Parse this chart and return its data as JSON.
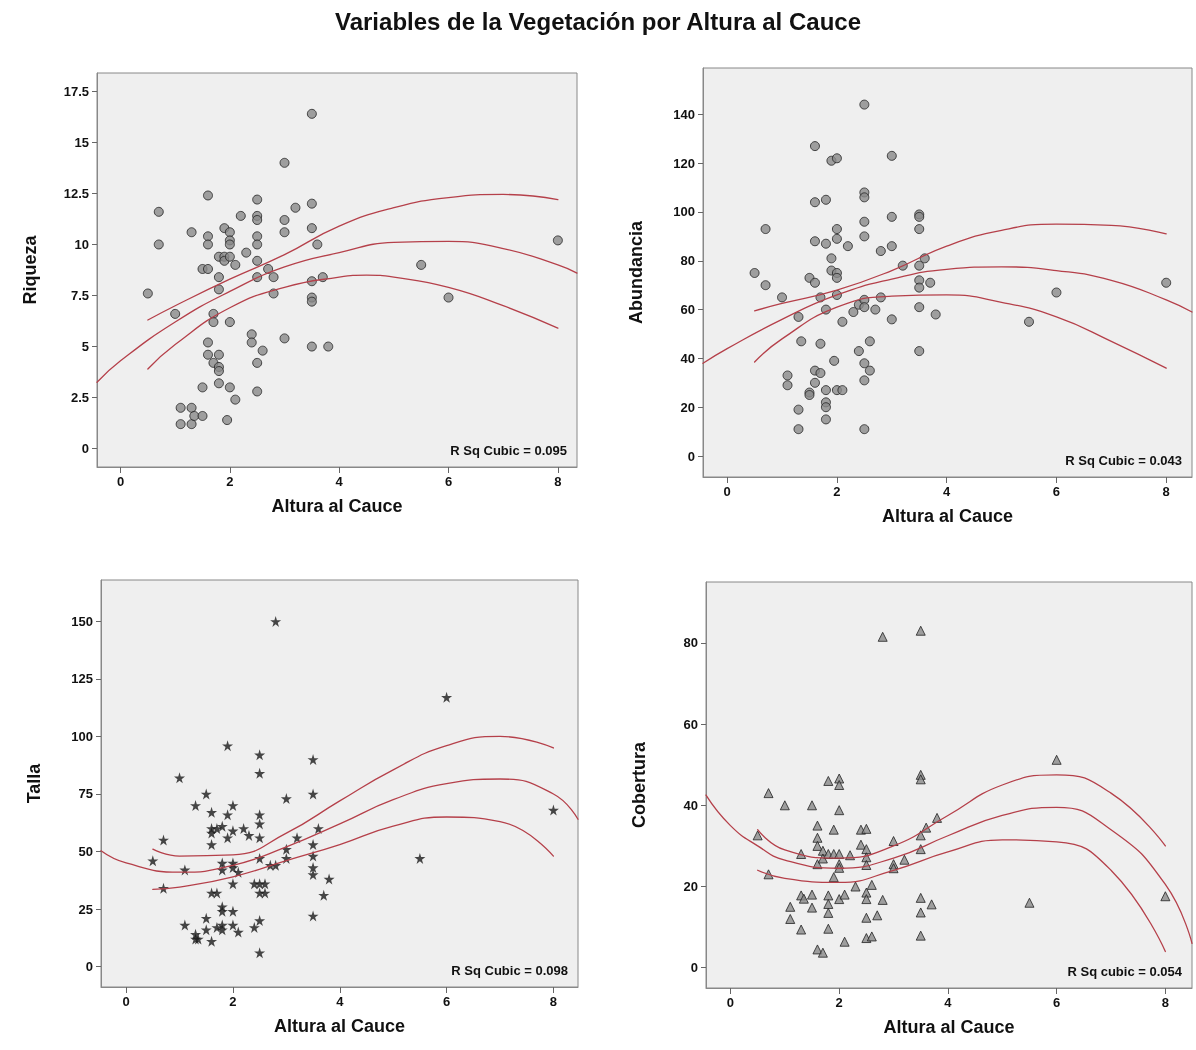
{
  "chart_data": [
    {
      "type": "scatter",
      "title": "Variables de la Vegetación por Altura al Cauce",
      "xlabel": "Altura al Cauce",
      "ylabel": "Riqueza",
      "annotations": [
        "R Sq Cubic = 0.095"
      ],
      "xlim": [
        -0.43,
        8.35
      ],
      "ylim": [
        -0.9,
        18.4
      ],
      "xticks": [
        0,
        2,
        4,
        6,
        8
      ],
      "yticks": [
        0,
        2.5,
        5,
        7.5,
        10,
        12.5,
        15,
        17.5
      ],
      "grid": false,
      "series": [
        {
          "marker": "circle",
          "color": "#8a8a8a",
          "x": [
            0.5,
            0.7,
            0.7,
            1.0,
            1.3,
            1.1,
            1.1,
            1.3,
            1.3,
            1.35,
            1.5,
            1.5,
            1.5,
            1.6,
            1.6,
            1.6,
            1.6,
            1.6,
            1.6,
            1.7,
            1.7,
            1.7,
            1.8,
            1.8,
            1.8,
            1.8,
            1.8,
            1.8,
            1.8,
            1.9,
            1.9,
            1.9,
            2.0,
            2.0,
            2.0,
            2.0,
            2.0,
            2.0,
            1.95,
            2.1,
            2.1,
            2.2,
            2.3,
            2.4,
            2.4,
            2.5,
            2.5,
            2.5,
            2.5,
            2.5,
            2.5,
            2.5,
            2.5,
            2.5,
            2.6,
            2.7,
            2.8,
            2.8,
            3.0,
            3.0,
            3.0,
            3.0,
            3.2,
            3.5,
            3.5,
            3.5,
            3.5,
            3.5,
            3.5,
            3.5,
            3.6,
            3.7,
            3.8,
            5.5,
            6.0,
            8.0
          ],
          "values": [
            7.6,
            11.6,
            10.0,
            6.6,
            10.6,
            2.0,
            1.2,
            2.0,
            1.2,
            1.6,
            1.6,
            3.0,
            8.8,
            8.8,
            12.4,
            10.4,
            10.0,
            5.2,
            4.6,
            6.6,
            6.2,
            4.2,
            4.6,
            4.0,
            3.8,
            3.2,
            8.4,
            7.8,
            9.4,
            9.4,
            9.2,
            10.8,
            10.6,
            10.2,
            10.0,
            9.4,
            6.2,
            3.0,
            1.4,
            9.0,
            2.4,
            11.4,
            9.6,
            5.6,
            5.2,
            12.2,
            11.4,
            11.2,
            10.4,
            10.0,
            9.2,
            8.4,
            4.2,
            2.8,
            4.8,
            8.8,
            8.4,
            7.6,
            14.0,
            11.2,
            10.6,
            5.4,
            11.8,
            16.4,
            12.0,
            10.8,
            8.2,
            7.4,
            7.2,
            5.0,
            10.0,
            8.4,
            5.0,
            9.0,
            7.4,
            10.2
          ]
        },
        {
          "type": "line",
          "marker": "none",
          "line_style": "solid",
          "color": "#b5404a",
          "x": [
            -0.43,
            0,
            1,
            2,
            3,
            4,
            5,
            6,
            7,
            8,
            8.35
          ],
          "values": [
            3.25,
            4.3,
            6.2,
            7.7,
            8.9,
            9.6,
            10.1,
            10.15,
            9.8,
            9.0,
            8.6
          ]
        },
        {
          "type": "line",
          "marker": "none",
          "line_style": "solid",
          "color": "#b5404a",
          "x": [
            0.5,
            1,
            2,
            3,
            4,
            5,
            6,
            7,
            8
          ],
          "values": [
            6.3,
            7.0,
            8.3,
            9.5,
            10.9,
            11.8,
            12.3,
            12.45,
            12.2
          ]
        },
        {
          "type": "line",
          "marker": "none",
          "line_style": "solid",
          "color": "#b5404a",
          "x": [
            0.5,
            1,
            2,
            3,
            4,
            4.5,
            5,
            6,
            7,
            8
          ],
          "values": [
            3.9,
            5.1,
            6.9,
            7.9,
            8.4,
            8.5,
            8.4,
            7.9,
            7.0,
            5.9
          ]
        }
      ]
    },
    {
      "type": "scatter",
      "xlabel": "Altura al Cauce",
      "ylabel": "Abundancia",
      "annotations": [
        "R Sq Cubic = 0.043"
      ],
      "xlim": [
        -0.44,
        8.47
      ],
      "ylim": [
        -8.6,
        159
      ],
      "xticks": [
        0,
        2,
        4,
        6,
        8
      ],
      "yticks": [
        0,
        20,
        40,
        60,
        80,
        100,
        120,
        140
      ],
      "grid": false,
      "series": [
        {
          "marker": "circle",
          "color": "#8a8a8a",
          "x": [
            0.5,
            0.7,
            0.7,
            1.0,
            1.1,
            1.1,
            1.3,
            1.3,
            1.3,
            1.35,
            1.5,
            1.5,
            1.5,
            1.6,
            1.6,
            1.6,
            1.6,
            1.6,
            1.6,
            1.7,
            1.7,
            1.7,
            1.8,
            1.8,
            1.8,
            1.8,
            1.8,
            1.8,
            1.8,
            1.9,
            1.9,
            1.9,
            1.95,
            2.0,
            2.0,
            2.0,
            2.0,
            2.0,
            2.0,
            2.0,
            2.1,
            2.1,
            2.2,
            2.3,
            2.4,
            2.4,
            2.5,
            2.5,
            2.5,
            2.5,
            2.5,
            2.5,
            2.5,
            2.5,
            2.5,
            2.5,
            2.6,
            2.6,
            2.7,
            2.8,
            2.8,
            3.0,
            3.0,
            3.0,
            3.0,
            3.2,
            3.5,
            3.5,
            3.5,
            3.5,
            3.5,
            3.5,
            3.5,
            3.5,
            3.6,
            3.7,
            3.8,
            5.5,
            6.0,
            8.0
          ],
          "values": [
            75,
            93,
            70,
            65,
            33,
            29,
            57,
            19,
            11,
            47,
            73,
            26,
            25,
            127,
            104,
            88,
            71,
            35,
            30,
            65,
            46,
            34,
            105,
            87,
            60,
            27,
            22,
            20,
            15,
            121,
            81,
            76,
            39,
            122,
            93,
            89,
            75,
            73,
            66,
            27,
            55,
            27,
            86,
            59,
            43,
            62,
            144,
            108,
            106,
            96,
            90,
            64,
            61,
            38,
            31,
            11,
            47,
            35,
            60,
            84,
            65,
            123,
            98,
            86,
            56,
            78,
            99,
            98,
            93,
            78,
            72,
            69,
            61,
            43,
            81,
            71,
            58,
            55,
            67,
            71
          ]
        },
        {
          "type": "line",
          "marker": "none",
          "line_style": "solid",
          "color": "#b5404a",
          "x": [
            -0.44,
            0,
            1,
            2,
            3,
            4,
            5,
            6,
            7,
            8,
            8.47
          ],
          "values": [
            38,
            44,
            56,
            66,
            72.5,
            76.5,
            77.5,
            76,
            72,
            64,
            59
          ]
        },
        {
          "type": "line",
          "marker": "none",
          "line_style": "solid",
          "color": "#b5404a",
          "x": [
            0.5,
            1,
            2,
            3,
            4,
            5,
            6,
            7,
            8
          ],
          "values": [
            59.5,
            62.5,
            68,
            76,
            86,
            92.5,
            95,
            94.5,
            91
          ]
        },
        {
          "type": "line",
          "marker": "none",
          "line_style": "solid",
          "color": "#b5404a",
          "x": [
            0.5,
            1,
            2,
            3,
            4,
            5,
            6,
            7,
            8
          ],
          "values": [
            38.5,
            48,
            61,
            65.5,
            66,
            63,
            57,
            47,
            36
          ]
        }
      ]
    },
    {
      "type": "scatter",
      "xlabel": "Altura al Cauce",
      "ylabel": "Talla",
      "annotations": [
        "R Sq Cubic = 0.098"
      ],
      "xlim": [
        -0.47,
        8.46
      ],
      "ylim": [
        -8.9,
        168
      ],
      "xticks": [
        0,
        2,
        4,
        6,
        8
      ],
      "yticks": [
        0,
        25,
        50,
        75,
        100,
        125,
        150
      ],
      "grid": false,
      "series": [
        {
          "marker": "star",
          "color": "#1a1a1a",
          "x": [
            0.5,
            0.7,
            0.7,
            1.0,
            1.1,
            1.1,
            1.3,
            1.3,
            1.3,
            1.35,
            1.5,
            1.5,
            1.5,
            1.6,
            1.6,
            1.6,
            1.6,
            1.6,
            1.6,
            1.7,
            1.7,
            1.7,
            1.8,
            1.8,
            1.8,
            1.8,
            1.8,
            1.8,
            1.8,
            1.9,
            1.9,
            1.9,
            2.0,
            2.0,
            2.0,
            2.0,
            2.0,
            2.0,
            2.0,
            2.1,
            2.1,
            2.2,
            2.3,
            2.4,
            2.4,
            2.5,
            2.5,
            2.5,
            2.5,
            2.5,
            2.5,
            2.5,
            2.5,
            2.5,
            2.5,
            2.6,
            2.6,
            2.7,
            2.8,
            2.8,
            3.0,
            3.0,
            3.0,
            3.2,
            3.5,
            3.5,
            3.5,
            3.5,
            3.5,
            3.5,
            3.5,
            3.6,
            3.7,
            3.8,
            5.5,
            6.0,
            8.0
          ],
          "values": [
            46,
            55,
            34,
            82,
            42,
            18,
            70,
            14,
            12,
            12,
            75,
            21,
            16,
            67,
            60,
            58,
            53,
            32,
            11,
            60,
            32,
            17,
            61,
            45,
            42,
            26,
            24,
            18,
            16,
            66,
            56,
            96,
            70,
            59,
            45,
            43,
            36,
            24,
            18,
            41,
            15,
            60,
            57,
            36,
            17,
            92,
            84,
            66,
            62,
            56,
            47,
            36,
            32,
            20,
            6,
            36,
            32,
            44,
            150,
            44,
            73,
            51,
            47,
            56,
            90,
            75,
            53,
            48,
            43,
            40,
            22,
            60,
            31,
            38,
            47,
            117,
            68
          ]
        },
        {
          "type": "line",
          "marker": "none",
          "line_style": "solid",
          "color": "#b5404a",
          "x": [
            -0.47,
            0,
            1,
            2,
            3,
            4,
            5,
            6,
            7,
            8,
            8.46
          ],
          "values": [
            50.3,
            45,
            41,
            44,
            52,
            62,
            72.5,
            79.5,
            81.5,
            75,
            64
          ]
        },
        {
          "type": "line",
          "marker": "none",
          "line_style": "solid",
          "color": "#b5404a",
          "x": [
            0.5,
            1,
            2,
            3,
            4,
            5,
            6,
            7,
            8
          ],
          "values": [
            51,
            48,
            48.5,
            58,
            72,
            85.5,
            96,
            100,
            95
          ]
        },
        {
          "type": "line",
          "marker": "none",
          "line_style": "solid",
          "color": "#b5404a",
          "x": [
            0.5,
            1,
            2,
            3,
            4,
            5,
            6,
            7,
            8
          ],
          "values": [
            33.5,
            34.5,
            39,
            46,
            53,
            61,
            65,
            63,
            48
          ]
        }
      ]
    },
    {
      "type": "scatter",
      "xlabel": "Altura al Cauce",
      "ylabel": "Cobertura",
      "annotations": [
        "R Sq cubic = 0.054"
      ],
      "xlim": [
        -0.45,
        8.49
      ],
      "ylim": [
        -5,
        95
      ],
      "xticks": [
        0,
        2,
        4,
        6,
        8
      ],
      "yticks": [
        0,
        20,
        40,
        60,
        80
      ],
      "grid": false,
      "series": [
        {
          "marker": "triangle",
          "color": "#8a8a8a",
          "x": [
            0.5,
            0.7,
            0.7,
            1.0,
            1.1,
            1.1,
            1.3,
            1.3,
            1.35,
            1.3,
            1.5,
            1.5,
            1.5,
            1.6,
            1.6,
            1.6,
            1.6,
            1.6,
            1.7,
            1.7,
            1.7,
            1.8,
            1.8,
            1.8,
            1.8,
            1.8,
            1.8,
            1.9,
            1.9,
            1.9,
            2.0,
            2.0,
            2.0,
            2.0,
            2.0,
            2.0,
            2.0,
            2.1,
            2.1,
            2.2,
            2.3,
            2.4,
            2.4,
            2.5,
            2.5,
            2.5,
            2.5,
            2.5,
            2.5,
            2.5,
            2.5,
            2.6,
            2.6,
            2.7,
            2.8,
            2.8,
            3.0,
            3.0,
            3.0,
            3.2,
            3.5,
            3.5,
            3.5,
            3.5,
            3.5,
            3.5,
            3.5,
            3.5,
            3.6,
            3.7,
            3.8,
            5.5,
            6.0,
            8.0
          ],
          "values": [
            32.6,
            43,
            23,
            40,
            15,
            12,
            28,
            17.8,
            17,
            9.4,
            40,
            18,
            14.8,
            35,
            32,
            30,
            25.5,
            4.5,
            28.8,
            26.9,
            3.7,
            46,
            28,
            17.8,
            15.7,
            13.5,
            9.6,
            34,
            28,
            22.3,
            46.6,
            45,
            38.8,
            28,
            25.5,
            24.6,
            16.9,
            18,
            6.4,
            27.7,
            20,
            34,
            30.3,
            34.2,
            29.2,
            27.2,
            25.3,
            18.5,
            16.9,
            12.3,
            7.3,
            20.4,
            7.7,
            12.9,
            81.5,
            16.7,
            31.2,
            25.5,
            24.5,
            26.6,
            83,
            47.5,
            46.4,
            32.6,
            29.2,
            17.2,
            13.6,
            7.9,
            34.5,
            15.6,
            36.9,
            16,
            51.2,
            17.6
          ]
        },
        {
          "type": "line",
          "marker": "none",
          "line_style": "solid",
          "color": "#b5404a",
          "x": [
            -0.45,
            0,
            0.5,
            1,
            2,
            3,
            4,
            5,
            6,
            7,
            8,
            8.49
          ],
          "values": [
            42.5,
            35,
            30,
            26.5,
            24.5,
            27,
            32.5,
            37.5,
            39.5,
            34,
            20.5,
            6
          ]
        },
        {
          "type": "line",
          "marker": "none",
          "line_style": "solid",
          "color": "#b5404a",
          "x": [
            0.5,
            1,
            2,
            3,
            4,
            5,
            6,
            7,
            8
          ],
          "values": [
            34,
            29,
            27,
            30,
            37.5,
            45,
            47.5,
            43,
            30
          ]
        },
        {
          "type": "line",
          "marker": "none",
          "line_style": "solid",
          "color": "#b5404a",
          "x": [
            0.5,
            1,
            2,
            3,
            4,
            5,
            6,
            7,
            8
          ],
          "values": [
            24,
            22,
            21,
            24,
            28.5,
            31.5,
            31,
            24,
            4
          ]
        }
      ]
    }
  ]
}
